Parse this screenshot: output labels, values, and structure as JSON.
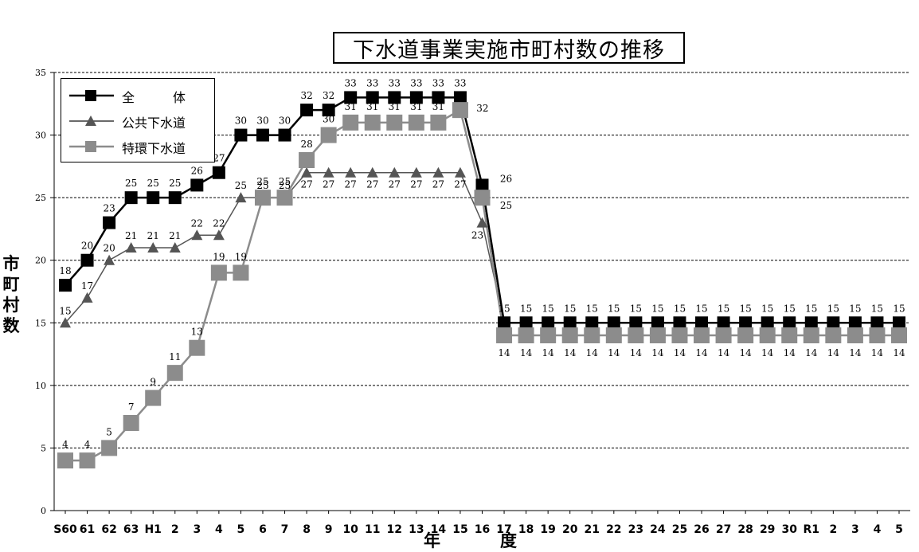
{
  "chart_data": {
    "type": "line",
    "title": "下水道事業実施市町村数の推移",
    "ylabel": "市町村数",
    "xlabel": [
      "年",
      "度"
    ],
    "ylim": [
      0,
      35
    ],
    "yticks": [
      0,
      5,
      10,
      15,
      20,
      25,
      30,
      35
    ],
    "grid": "horizontal dashed",
    "legend_position": "top-left",
    "categories": [
      "S60",
      "61",
      "62",
      "63",
      "H1",
      "2",
      "3",
      "4",
      "5",
      "6",
      "7",
      "8",
      "9",
      "10",
      "11",
      "12",
      "13",
      "14",
      "15",
      "16",
      "17",
      "18",
      "19",
      "20",
      "21",
      "22",
      "23",
      "24",
      "25",
      "26",
      "27",
      "28",
      "29",
      "30",
      "R1",
      "2",
      "3",
      "4",
      "5"
    ],
    "series": [
      {
        "name": "全 体",
        "legend_label": "全　　　体",
        "color": "#000000",
        "marker": "square",
        "values": [
          18,
          20,
          23,
          25,
          25,
          25,
          26,
          27,
          30,
          30,
          30,
          32,
          32,
          33,
          33,
          33,
          33,
          33,
          33,
          26,
          15,
          15,
          15,
          15,
          15,
          15,
          15,
          15,
          15,
          15,
          15,
          15,
          15,
          15,
          15,
          15,
          15,
          15,
          15
        ]
      },
      {
        "name": "公共下水道",
        "legend_label": "公共下水道",
        "color": "#555555",
        "marker": "triangle",
        "values": [
          15,
          17,
          20,
          21,
          21,
          21,
          22,
          22,
          25,
          25,
          25,
          27,
          27,
          27,
          27,
          27,
          27,
          27,
          27,
          23,
          15,
          15,
          15,
          15,
          15,
          15,
          15,
          15,
          15,
          15,
          15,
          15,
          15,
          15,
          15,
          15,
          15,
          15,
          15
        ]
      },
      {
        "name": "特環下水道",
        "legend_label": "特環下水道",
        "color": "#8c8c8c",
        "marker": "square",
        "values": [
          4,
          4,
          5,
          7,
          9,
          11,
          13,
          19,
          19,
          25,
          25,
          28,
          30,
          31,
          31,
          31,
          31,
          31,
          32,
          25,
          14,
          14,
          14,
          14,
          14,
          14,
          14,
          14,
          14,
          14,
          14,
          14,
          14,
          14,
          14,
          14,
          14,
          14,
          14
        ]
      }
    ]
  }
}
